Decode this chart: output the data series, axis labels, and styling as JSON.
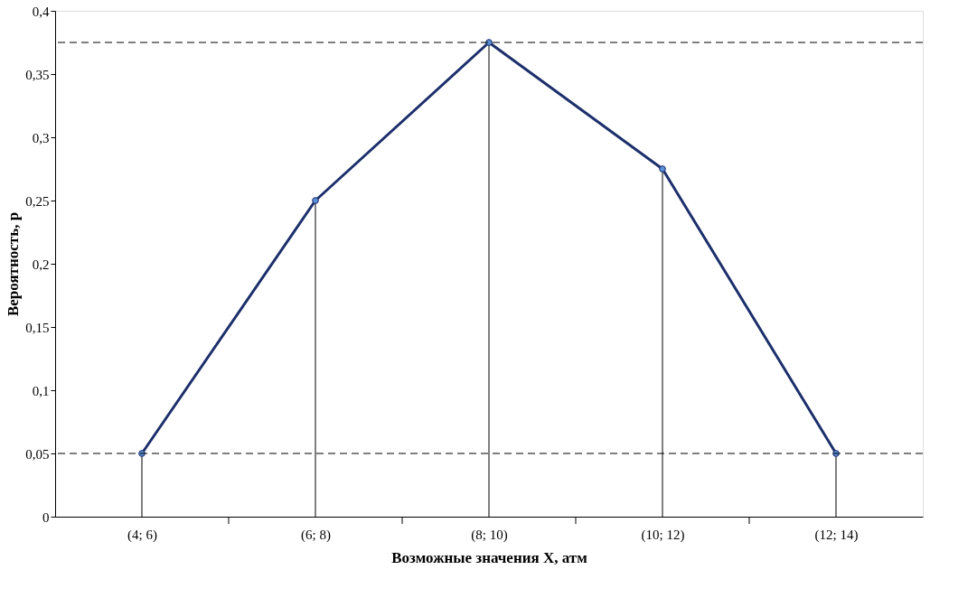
{
  "chart_data": {
    "type": "line",
    "xlabel": "Возможные значения X, атм",
    "ylabel": "Вероятность, p",
    "categories": [
      "(4; 6)",
      "(6; 8)",
      "(8; 10)",
      "(10; 12)",
      "(12; 14)"
    ],
    "series": [
      {
        "color": "#1c2f6b",
        "values": [
          0.05,
          0.25,
          0.375,
          0.275,
          0.05
        ],
        "errors": [
          [
            0,
            0.05
          ],
          [
            0,
            0.25
          ],
          [
            0,
            0.375
          ],
          [
            0,
            0.275
          ],
          [
            0,
            0.05
          ]
        ]
      }
    ],
    "ylim": [
      0,
      0.4
    ],
    "yticks": [
      0,
      {
        "value": 0.05,
        "label": "0,05"
      },
      {
        "value": 0.1,
        "label": "0,1"
      },
      {
        "value": 0.15,
        "label": "0,15"
      },
      {
        "value": 0.2,
        "label": "0,2"
      },
      {
        "value": 0.25,
        "label": "0,25"
      },
      {
        "value": 0.3,
        "label": "0,3"
      },
      {
        "value": 0.35,
        "label": "0,35"
      },
      {
        "value": 0.4,
        "label": "0,4"
      }
    ],
    "ref_lines": [
      {
        "axis": "y",
        "value": 0.375,
        "line_style": "dashed",
        "color": "#000000"
      },
      {
        "axis": "y",
        "value": 0.05,
        "line_style": "dashed",
        "color": "#000000"
      }
    ],
    "marker": "circle",
    "line_style": "solid",
    "grid": false
  }
}
